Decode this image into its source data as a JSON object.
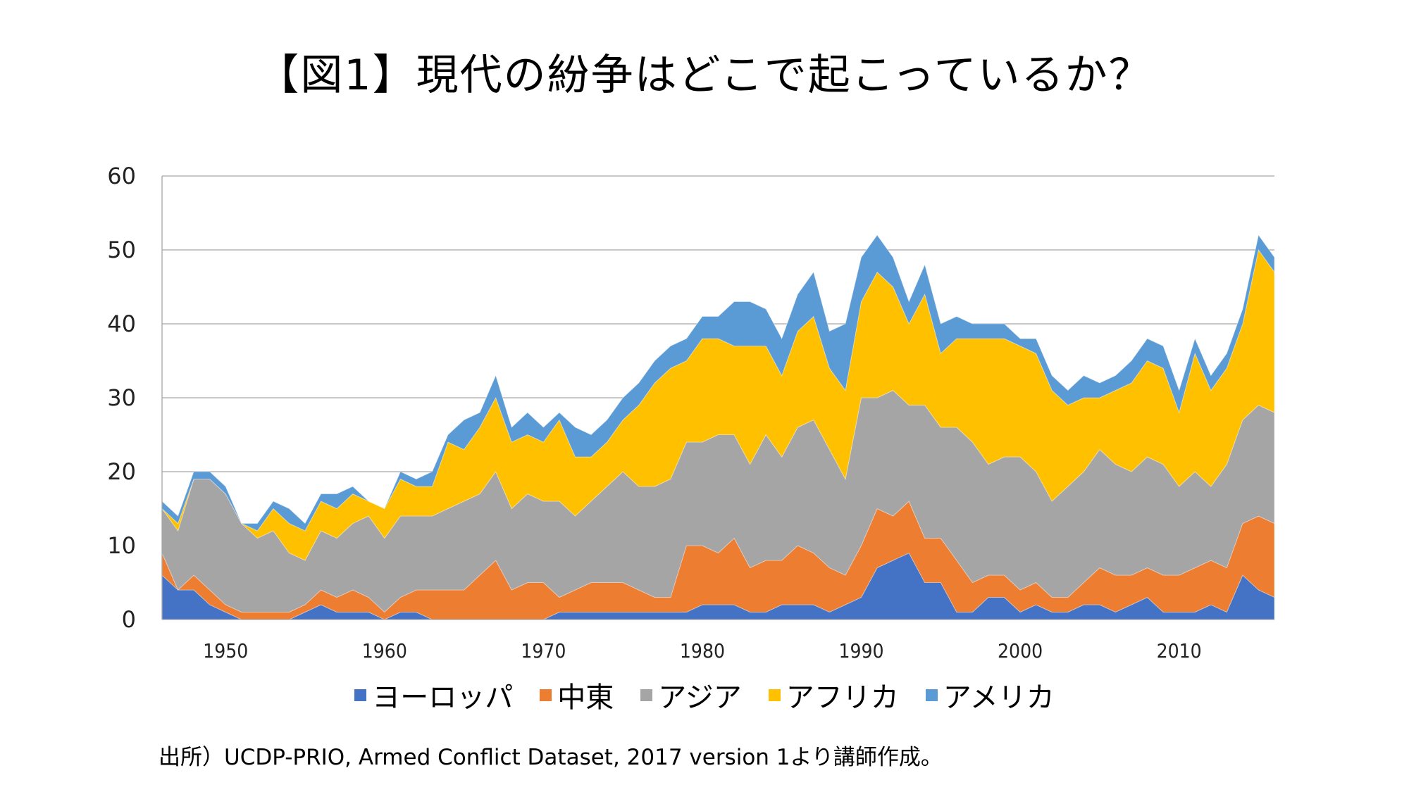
{
  "title": "【図1】現代の紛争はどこで起こっているか？",
  "source_note": "出所）UCDP-PRIO, Armed Conflict Dataset, 2017 version 1より講師作成。",
  "chart_data": {
    "type": "area",
    "stacked": true,
    "title": "【図1】現代の紛争はどこで起こっているか？",
    "xlabel": "",
    "ylabel": "",
    "ylim": [
      0,
      60
    ],
    "yticks": [
      0,
      10,
      20,
      30,
      40,
      50,
      60
    ],
    "xlim": [
      1946,
      2016
    ],
    "xticks": [
      1950,
      1960,
      1970,
      1980,
      1990,
      2000,
      2010
    ],
    "grid": "horizontal",
    "legend_position": "bottom",
    "x": [
      1946,
      1947,
      1948,
      1949,
      1950,
      1951,
      1952,
      1953,
      1954,
      1955,
      1956,
      1957,
      1958,
      1959,
      1960,
      1961,
      1962,
      1963,
      1964,
      1965,
      1966,
      1967,
      1968,
      1969,
      1970,
      1971,
      1972,
      1973,
      1974,
      1975,
      1976,
      1977,
      1978,
      1979,
      1980,
      1981,
      1982,
      1983,
      1984,
      1985,
      1986,
      1987,
      1988,
      1989,
      1990,
      1991,
      1992,
      1993,
      1994,
      1995,
      1996,
      1997,
      1998,
      1999,
      2000,
      2001,
      2002,
      2003,
      2004,
      2005,
      2006,
      2007,
      2008,
      2009,
      2010,
      2011,
      2012,
      2013,
      2014,
      2015,
      2016
    ],
    "series": [
      {
        "name": "ヨーロッパ",
        "color": "#4472C4",
        "values": [
          6,
          4,
          4,
          2,
          1,
          0,
          0,
          0,
          0,
          1,
          2,
          1,
          1,
          1,
          0,
          1,
          1,
          0,
          0,
          0,
          0,
          0,
          0,
          0,
          0,
          1,
          1,
          1,
          1,
          1,
          1,
          1,
          1,
          1,
          2,
          2,
          2,
          1,
          1,
          2,
          2,
          2,
          1,
          2,
          3,
          7,
          8,
          9,
          5,
          5,
          1,
          1,
          3,
          3,
          1,
          2,
          1,
          1,
          2,
          2,
          1,
          2,
          3,
          1,
          1,
          1,
          2,
          1,
          6,
          4,
          3
        ]
      },
      {
        "name": "中東",
        "color": "#ED7D31",
        "values": [
          3,
          0,
          2,
          2,
          1,
          1,
          1,
          1,
          1,
          1,
          2,
          2,
          3,
          2,
          1,
          2,
          3,
          4,
          4,
          4,
          6,
          8,
          4,
          5,
          5,
          2,
          3,
          4,
          4,
          4,
          3,
          2,
          2,
          9,
          8,
          7,
          9,
          6,
          7,
          6,
          8,
          7,
          6,
          4,
          7,
          8,
          6,
          7,
          6,
          6,
          7,
          4,
          3,
          3,
          3,
          3,
          2,
          2,
          3,
          5,
          5,
          4,
          4,
          5,
          5,
          6,
          6,
          6,
          7,
          10,
          10
        ]
      },
      {
        "name": "アジア",
        "color": "#A5A5A5",
        "values": [
          6,
          8,
          13,
          15,
          15,
          12,
          10,
          11,
          8,
          6,
          8,
          8,
          9,
          11,
          10,
          11,
          10,
          10,
          11,
          12,
          11,
          12,
          11,
          12,
          11,
          13,
          10,
          11,
          13,
          15,
          14,
          15,
          16,
          14,
          14,
          16,
          14,
          14,
          17,
          14,
          16,
          18,
          16,
          13,
          20,
          15,
          17,
          13,
          18,
          15,
          18,
          19,
          15,
          16,
          18,
          15,
          13,
          15,
          15,
          16,
          15,
          14,
          15,
          15,
          12,
          13,
          10,
          14,
          14,
          15,
          15
        ]
      },
      {
        "name": "アフリカ",
        "color": "#FFC000",
        "values": [
          0,
          1,
          0,
          0,
          0,
          0,
          1,
          3,
          4,
          4,
          4,
          4,
          4,
          2,
          4,
          5,
          4,
          4,
          9,
          7,
          9,
          10,
          9,
          8,
          8,
          11,
          8,
          6,
          6,
          7,
          11,
          14,
          15,
          11,
          14,
          13,
          12,
          16,
          12,
          11,
          13,
          14,
          11,
          12,
          13,
          17,
          14,
          11,
          15,
          10,
          12,
          14,
          17,
          16,
          15,
          16,
          15,
          11,
          10,
          7,
          10,
          12,
          13,
          13,
          10,
          16,
          13,
          13,
          13,
          21,
          19
        ]
      },
      {
        "name": "アメリカ",
        "color": "#5B9BD5",
        "values": [
          1,
          1,
          1,
          1,
          1,
          0,
          1,
          1,
          2,
          1,
          1,
          2,
          1,
          0,
          0,
          1,
          1,
          2,
          1,
          4,
          2,
          3,
          2,
          3,
          2,
          1,
          4,
          3,
          3,
          3,
          3,
          3,
          3,
          3,
          3,
          3,
          6,
          6,
          5,
          5,
          5,
          6,
          5,
          9,
          6,
          5,
          4,
          3,
          4,
          4,
          3,
          2,
          2,
          2,
          1,
          2,
          2,
          2,
          3,
          2,
          2,
          3,
          3,
          3,
          3,
          2,
          2,
          2,
          2,
          2,
          2
        ]
      }
    ]
  }
}
